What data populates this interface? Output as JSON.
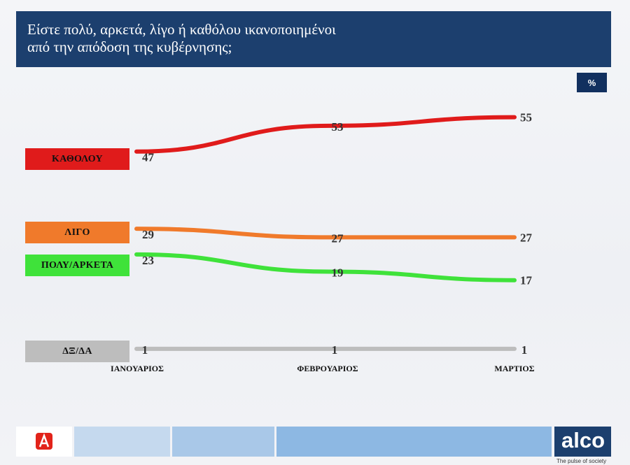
{
  "header": {
    "title_line1": "Είστε πολύ, αρκετά, λίγο ή καθόλου ικανοποιημένοι",
    "title_line2": "από την απόδοση της κυβέρνησης;"
  },
  "unit_label": "%",
  "branding": {
    "logo_text": "alco",
    "tagline": "The pulse of society"
  },
  "chart_data": {
    "type": "line",
    "title": "Είστε πολύ, αρκετά, λίγο ή καθόλου ικανοποιημένοι από την απόδοση της κυβέρνησης;",
    "categories": [
      "ΙΑΝΟΥΑΡΙΟΣ",
      "ΦΕΒΡΟΥΑΡΙΟΣ",
      "ΜΑΡΤΙΟΣ"
    ],
    "ylim": [
      0,
      60
    ],
    "grid": false,
    "legend_placement": "left",
    "series": [
      {
        "name": "ΚΑΘΟΛΟΥ",
        "values": [
          47,
          53,
          55
        ],
        "color": "#e01b1b"
      },
      {
        "name": "ΛΙΓΟ",
        "values": [
          29,
          27,
          27
        ],
        "color": "#f07a2b"
      },
      {
        "name": "ΠΟΛΥ/ΑΡΚΕΤΑ",
        "values": [
          23,
          19,
          17
        ],
        "color": "#3fe23a"
      },
      {
        "name": "ΔΞ/ΔΑ",
        "values": [
          1,
          1,
          1
        ],
        "color": "#bdbdbd"
      }
    ]
  }
}
